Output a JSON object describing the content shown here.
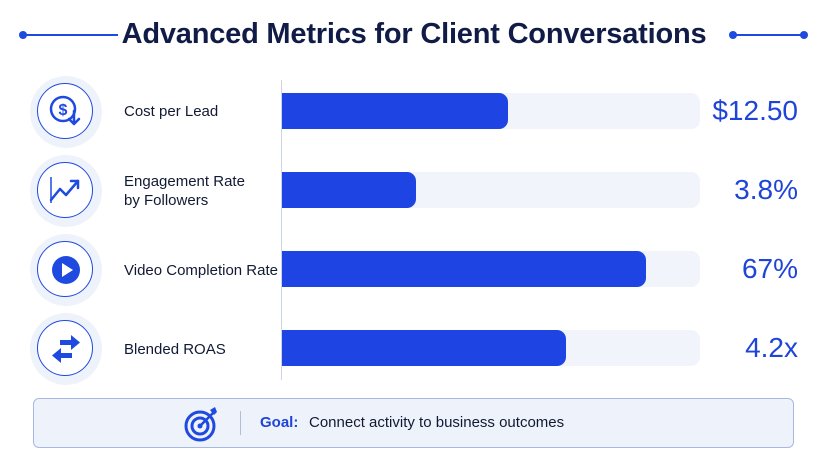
{
  "title": "Advanced Metrics for Client Conversations",
  "colors": {
    "accent": "#1e45e3",
    "track": "#f1f4fb",
    "title": "#101c47",
    "value": "#1f44d8"
  },
  "chart_data": {
    "type": "bar",
    "orientation": "horizontal",
    "categories": [
      "Cost per Lead",
      "Engagement Rate by Followers",
      "Video Completion Rate",
      "Blended ROAS"
    ],
    "value_labels": [
      "$12.50",
      "3.8%",
      "67%",
      "4.2x"
    ],
    "bar_fill_fraction": [
      0.54,
      0.32,
      0.87,
      0.68
    ],
    "icons": [
      "dollar-down-icon",
      "trend-up-icon",
      "play-icon",
      "swap-arrows-icon"
    ]
  },
  "metrics": [
    {
      "label_line1": "Cost per Lead",
      "label_line2": "",
      "value": "$12.50"
    },
    {
      "label_line1": "Engagement Rate",
      "label_line2": "by Followers",
      "value": "3.8%"
    },
    {
      "label_line1": "Video Completion Rate",
      "label_line2": "",
      "value": "67%"
    },
    {
      "label_line1": "Blended ROAS",
      "label_line2": "",
      "value": "4.2x"
    }
  ],
  "goal": {
    "label": "Goal:",
    "text": "Connect activity to business outcomes",
    "icon": "target-icon"
  }
}
